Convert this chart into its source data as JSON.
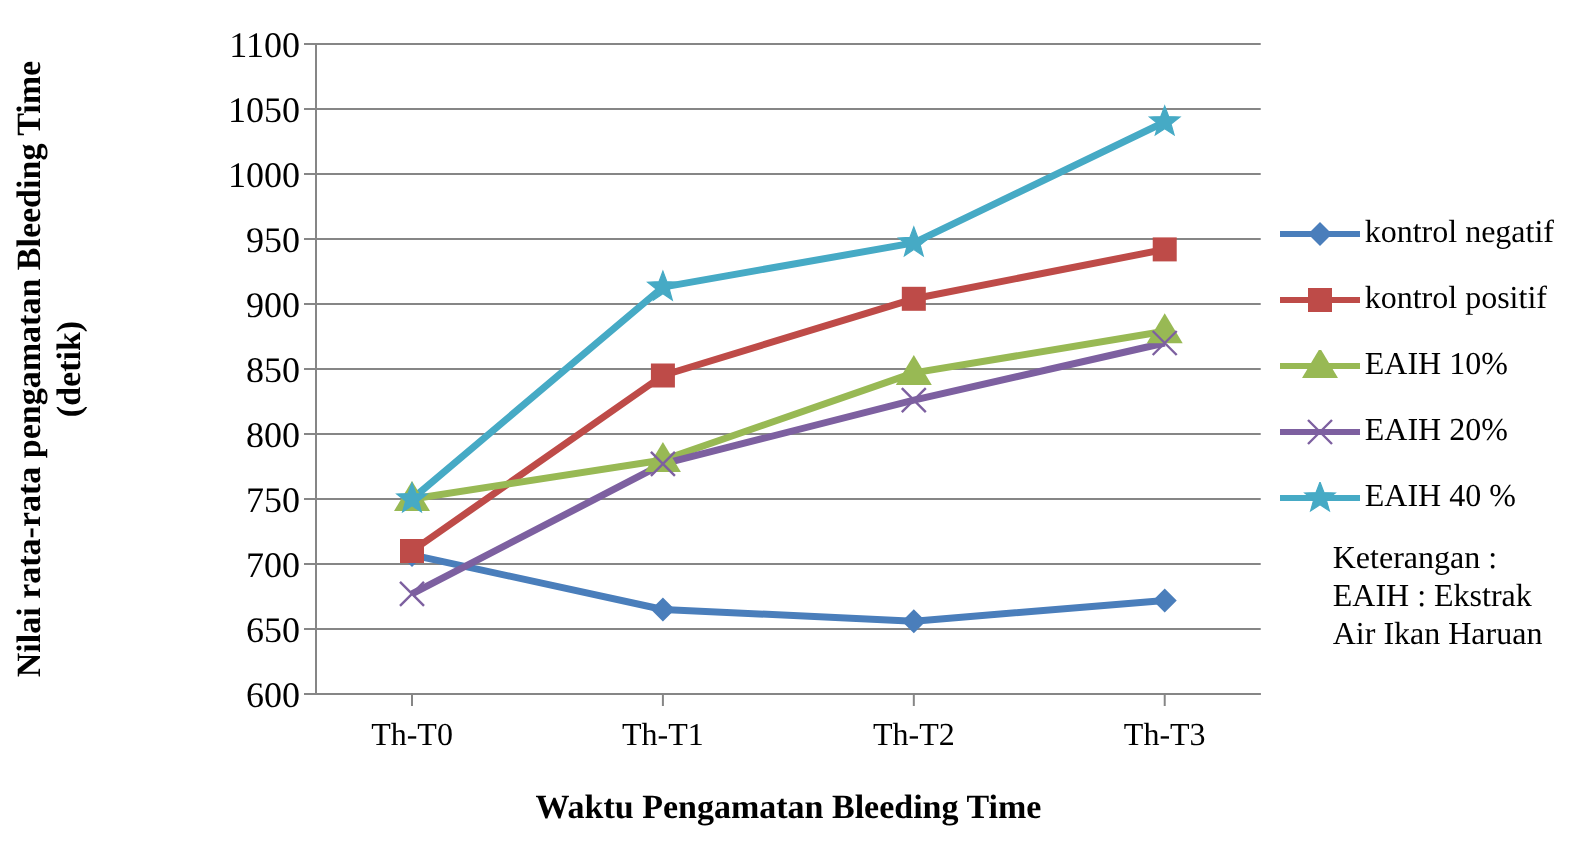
{
  "chart_data": {
    "type": "line",
    "xlabel": "Waktu Pengamatan Bleeding Time",
    "ylabel": "Nilai rata-rata pengamatan Bleeding Time (detik)",
    "categories": [
      "Th-T0",
      "Th-T1",
      "Th-T2",
      "Th-T3"
    ],
    "series": [
      {
        "name": "kontrol negatif",
        "color": "#4a7ebb",
        "marker": "diamond",
        "values": [
          707,
          665,
          656,
          672
        ]
      },
      {
        "name": "kontrol positif",
        "color": "#be4b48",
        "marker": "square",
        "values": [
          710,
          845,
          904,
          942
        ]
      },
      {
        "name": "EAIH 10%",
        "color": "#98b954",
        "marker": "triangle",
        "values": [
          750,
          780,
          847,
          879
        ]
      },
      {
        "name": "EAIH 20%",
        "color": "#7d60a0",
        "marker": "cross",
        "values": [
          677,
          777,
          826,
          870
        ]
      },
      {
        "name": "EAIH 40 %",
        "color": "#46aac5",
        "marker": "star",
        "values": [
          750,
          913,
          947,
          1040
        ]
      }
    ],
    "ylim": [
      600,
      1100
    ],
    "yticks": [
      600,
      650,
      700,
      750,
      800,
      850,
      900,
      950,
      1000,
      1050,
      1100
    ],
    "grid": "y",
    "legend": "right",
    "annotations": [
      "Keterangan :",
      "EAIH : Ekstrak",
      "Air Ikan Haruan"
    ]
  }
}
